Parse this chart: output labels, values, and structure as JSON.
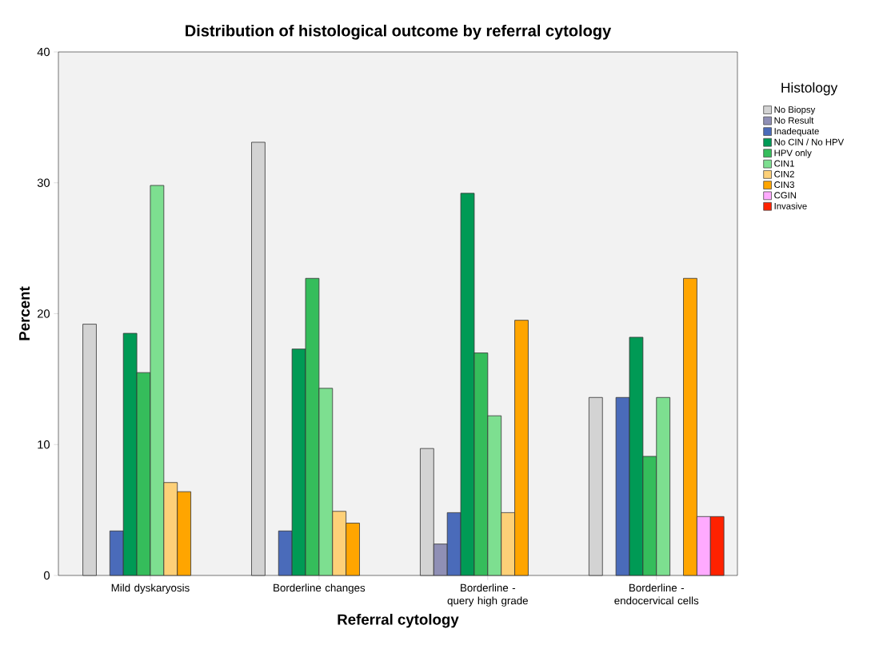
{
  "chart_data": {
    "type": "bar",
    "title": "Distribution of histological outcome by referral cytology",
    "xlabel": "Referral cytology",
    "ylabel": "Percent",
    "legend_title": "Histology",
    "categories": [
      "Mild dyskaryosis",
      "Borderline changes",
      "Borderline - query high grade",
      "Borderline - endocervical cells"
    ],
    "ylim": [
      0,
      40
    ],
    "yticks": [
      0,
      10,
      20,
      30,
      40
    ],
    "grid": false,
    "legend": "right",
    "series": [
      {
        "name": "No Biopsy",
        "color": "#d3d3d3",
        "values": [
          19.2,
          33.1,
          9.7,
          13.6
        ]
      },
      {
        "name": "No Result",
        "color": "#8f8fb5",
        "values": [
          null,
          null,
          2.4,
          null
        ]
      },
      {
        "name": "Inadequate",
        "color": "#4a6bba",
        "values": [
          3.4,
          3.4,
          4.8,
          13.6
        ]
      },
      {
        "name": "No CIN / No HPV",
        "color": "#009a55",
        "values": [
          18.5,
          17.3,
          29.2,
          18.2
        ]
      },
      {
        "name": "HPV only",
        "color": "#35bd5b",
        "values": [
          15.5,
          22.7,
          17.0,
          9.1
        ]
      },
      {
        "name": "CIN1",
        "color": "#7ddf90",
        "values": [
          29.8,
          14.3,
          12.2,
          13.6
        ]
      },
      {
        "name": "CIN2",
        "color": "#fdd078",
        "values": [
          7.1,
          4.9,
          4.8,
          null
        ]
      },
      {
        "name": "CIN3",
        "color": "#ffa500",
        "values": [
          6.4,
          4.0,
          19.5,
          22.7
        ]
      },
      {
        "name": "CGIN",
        "color": "#ffaaff",
        "values": [
          null,
          null,
          null,
          4.5
        ]
      },
      {
        "name": "Invasive",
        "color": "#ff2200",
        "values": [
          null,
          null,
          null,
          4.5
        ]
      }
    ]
  }
}
